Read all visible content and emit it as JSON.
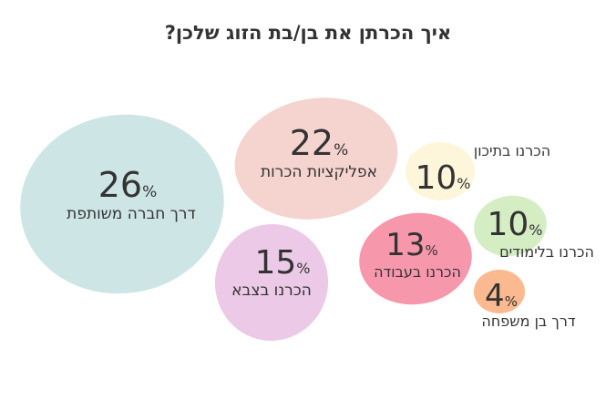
{
  "title": "איך הכרתן את בן/בת הזוג שלכן?",
  "chart_data": {
    "type": "bubble",
    "title": "איך הכרתן את בן/בת הזוג שלכן?",
    "unit": "%",
    "items": [
      {
        "label": "דרך חברה משותפת",
        "value": 26,
        "color": "#cde6e5"
      },
      {
        "label": "אפליקציות הכרות",
        "value": 22,
        "color": "#f5d4cf"
      },
      {
        "label": "הכרנו בצבא",
        "value": 15,
        "color": "#ebc9e7"
      },
      {
        "label": "הכרנו בעבודה",
        "value": 13,
        "color": "#f797ac"
      },
      {
        "label": "הכרנו בתיכון",
        "value": 10,
        "color": "#fdf6da"
      },
      {
        "label": "הכרנו בלימודים",
        "value": 10,
        "color": "#d4edc3"
      },
      {
        "label": "דרך בן משפחה",
        "value": 4,
        "color": "#fbb98f"
      }
    ]
  }
}
